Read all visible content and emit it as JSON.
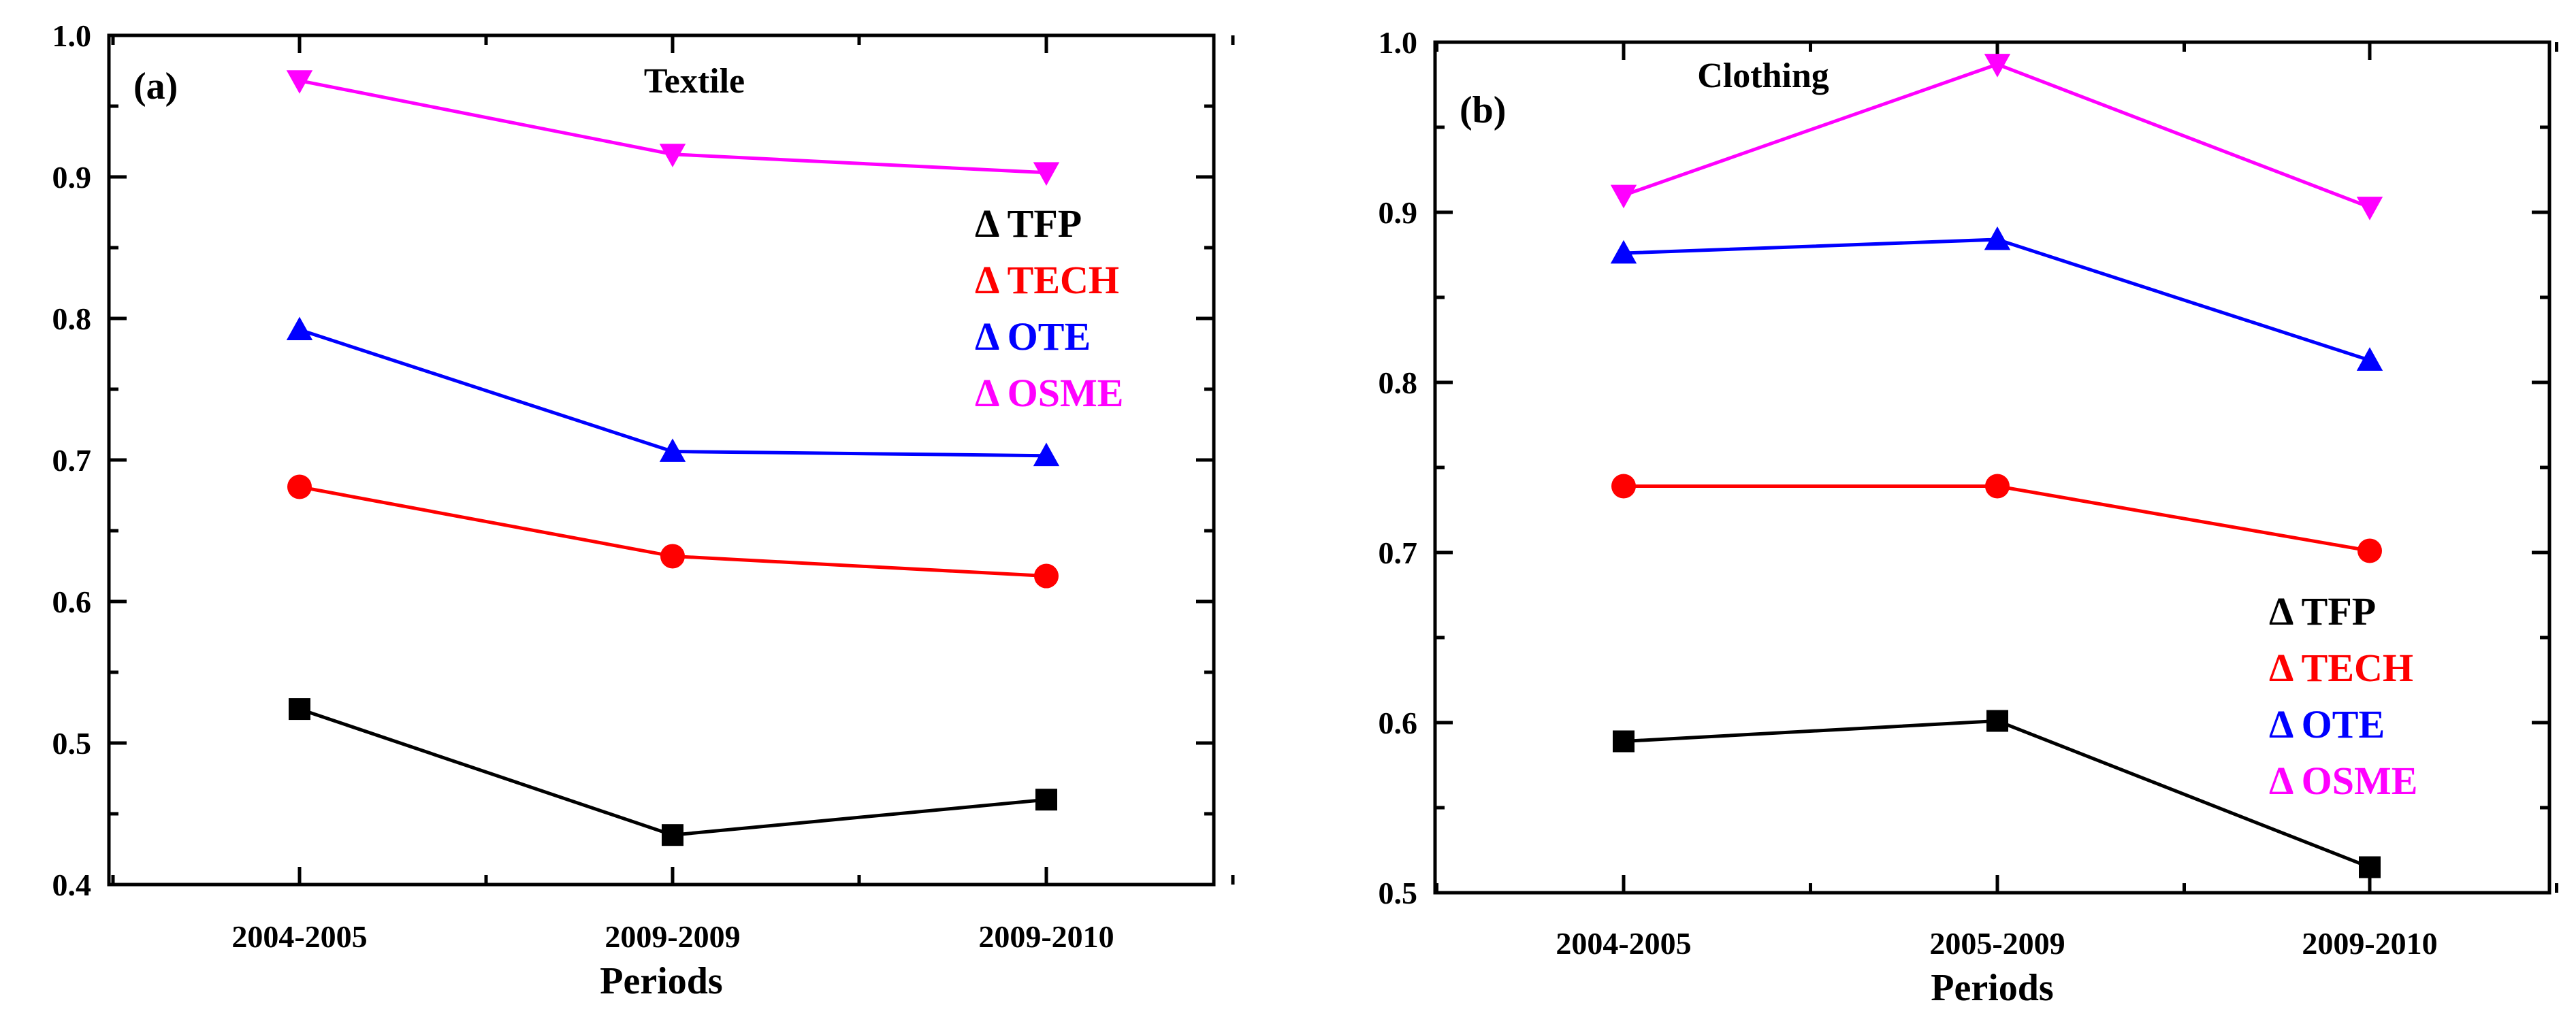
{
  "chart_data": [
    {
      "type": "line",
      "panel_label": "(a)",
      "title": "Textile",
      "xlabel": "Periods",
      "ylabel": "",
      "categories": [
        "2004-2005",
        "2009-2009",
        "2009-2010"
      ],
      "ylim": [
        0.4,
        1.0
      ],
      "yticks": [
        "0.4",
        "0.5",
        "0.6",
        "0.7",
        "0.8",
        "0.9",
        "1.0"
      ],
      "grid": false,
      "legend_position": "right",
      "series": [
        {
          "name": "Δ TFP",
          "color": "#000000",
          "marker": "square",
          "values": [
            0.524,
            0.435,
            0.46
          ]
        },
        {
          "name": "Δ TECH",
          "color": "#ff0000",
          "marker": "circle",
          "values": [
            0.681,
            0.632,
            0.618
          ]
        },
        {
          "name": "Δ OTE",
          "color": "#0000ff",
          "marker": "triangle-up",
          "values": [
            0.792,
            0.706,
            0.703
          ]
        },
        {
          "name": "Δ OSME",
          "color": "#ff00ff",
          "marker": "triangle-down",
          "values": [
            0.968,
            0.916,
            0.903
          ]
        }
      ]
    },
    {
      "type": "line",
      "panel_label": "(b)",
      "title": "Clothing",
      "xlabel": "Periods",
      "ylabel": "",
      "categories": [
        "2004-2005",
        "2005-2009",
        "2009-2010"
      ],
      "ylim": [
        0.5,
        1.0
      ],
      "yticks": [
        "0.5",
        "0.6",
        "0.7",
        "0.8",
        "0.9",
        "1.0"
      ],
      "grid": false,
      "legend_position": "bottom-right",
      "series": [
        {
          "name": "Δ TFP",
          "color": "#000000",
          "marker": "square",
          "values": [
            0.589,
            0.601,
            0.515
          ]
        },
        {
          "name": "Δ TECH",
          "color": "#ff0000",
          "marker": "circle",
          "values": [
            0.739,
            0.739,
            0.701
          ]
        },
        {
          "name": "Δ OTE",
          "color": "#0000ff",
          "marker": "triangle-up",
          "values": [
            0.876,
            0.884,
            0.813
          ]
        },
        {
          "name": "Δ OSME",
          "color": "#ff00ff",
          "marker": "triangle-down",
          "values": [
            0.91,
            0.987,
            0.903
          ]
        }
      ]
    }
  ]
}
